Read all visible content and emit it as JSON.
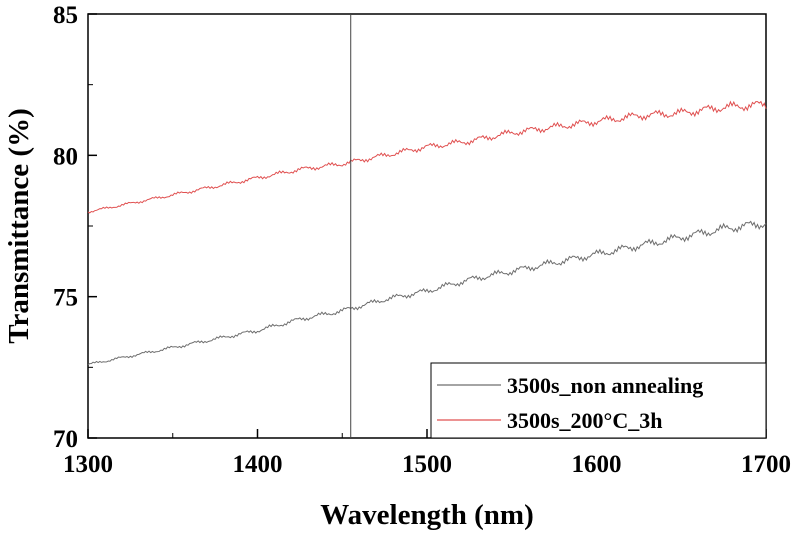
{
  "chart_data": {
    "type": "line",
    "xlabel": "Wavelength (nm)",
    "ylabel": "Transmittance (%)",
    "xlim": [
      1300,
      1700
    ],
    "ylim": [
      70,
      85
    ],
    "xticks": [
      "1300",
      "1400",
      "1500",
      "1600",
      "1700"
    ],
    "yticks": [
      "70",
      "75",
      "80",
      "85"
    ],
    "grid": false,
    "legend_position": "bottom-right",
    "reference_line_x": 1455,
    "x": [
      1300,
      1325,
      1350,
      1375,
      1400,
      1425,
      1450,
      1475,
      1500,
      1525,
      1550,
      1575,
      1600,
      1625,
      1650,
      1675,
      1700
    ],
    "series": [
      {
        "name": "3500s_non annealing",
        "color": "#6e6e6e",
        "values": [
          72.6,
          72.9,
          73.2,
          73.5,
          73.8,
          74.2,
          74.5,
          74.9,
          75.2,
          75.6,
          75.9,
          76.2,
          76.5,
          76.8,
          77.1,
          77.4,
          77.6
        ]
      },
      {
        "name": "3500s_200°C_3h",
        "color": "#e05050",
        "values": [
          78.0,
          78.3,
          78.6,
          78.9,
          79.2,
          79.5,
          79.7,
          80.0,
          80.3,
          80.5,
          80.8,
          81.0,
          81.2,
          81.4,
          81.5,
          81.7,
          81.8
        ]
      }
    ]
  }
}
